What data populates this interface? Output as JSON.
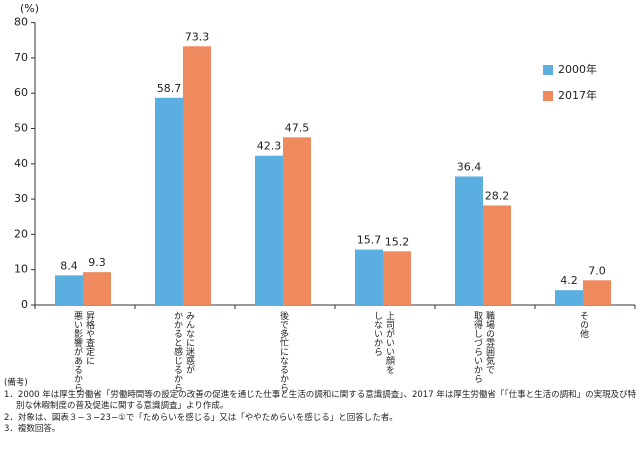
{
  "chart_data": {
    "type": "bar",
    "y_label": "(%)",
    "categories": [
      "昇格や査定に\n悪い影響があるから",
      "みんなに迷惑が\nかかると感じるから",
      "後で多忙になるから",
      "上司がいい顔を\nしないから",
      "職場の雰囲気で\n取得しづらいから",
      "その他"
    ],
    "series": [
      {
        "name": "2000年",
        "color": "#5aaee0",
        "values": [
          8.4,
          58.7,
          42.3,
          15.7,
          36.4,
          4.2
        ],
        "value_labels": [
          "8.4",
          "58.7",
          "42.3",
          "15.7",
          "36.4",
          "4.2"
        ]
      },
      {
        "name": "2017年",
        "color": "#ee8a5d",
        "values": [
          9.3,
          73.3,
          47.5,
          15.2,
          28.2,
          7.0
        ],
        "value_labels": [
          "9.3",
          "73.3",
          "47.5",
          "15.2",
          "28.2",
          "7.0"
        ]
      }
    ],
    "ylim": [
      0,
      80
    ],
    "yticks": [
      0,
      10,
      20,
      30,
      40,
      50,
      60,
      70,
      80
    ],
    "grid": false,
    "legend": "right"
  },
  "notes": {
    "heading": "(備考)",
    "items": [
      "1．2000 年は厚生労働省「労働時間等の設定の改善の促進を通じた仕事と生活の調和に関する意識調査」、2017 年は厚生労働省「「仕事と生活の調和」の実現及び特別な休暇制度の普及促進に関する意識調査」より作成。",
      "2．対象は、図表３−３−23−①で「ためらいを感じる」又は「ややためらいを感じる」と回答した者。",
      "3．複数回答。"
    ]
  }
}
